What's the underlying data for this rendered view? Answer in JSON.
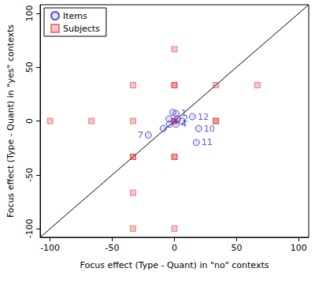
{
  "chart_data": {
    "type": "scatter",
    "x_label": "Focus effect (Type - Quant) in \"no\" contexts",
    "y_label": "Focus effect (Type - Quant) in \"yes\" contexts",
    "xlim": [
      -108,
      108
    ],
    "ylim": [
      -108,
      108
    ],
    "xticks": [
      -100,
      -50,
      0,
      50,
      100
    ],
    "yticks": [
      -100,
      -50,
      0,
      50,
      100
    ],
    "grid": false,
    "legend": "top-left",
    "series": [
      {
        "type": "line",
        "color": "#000000",
        "line_style": "solid",
        "x": [
          -108,
          108
        ],
        "values": [
          -108,
          108
        ]
      },
      {
        "name": "Subjects",
        "type": "scatter",
        "marker": "square",
        "color": "#e03030",
        "x": [
          0,
          -33.3,
          0,
          0,
          33.3,
          66.7,
          -100,
          -66.7,
          -33.3,
          0,
          0,
          33.3,
          33.3,
          -33.3,
          -33.3,
          0,
          0,
          -33.3,
          -33.3,
          0
        ],
        "values": [
          66.7,
          33.3,
          33.3,
          33.3,
          33.3,
          33.3,
          0,
          0,
          0,
          0,
          0,
          0,
          0,
          -33.3,
          -33.3,
          -33.3,
          -33.3,
          -66.7,
          -100,
          -100
        ]
      },
      {
        "name": "Items",
        "type": "scatter",
        "marker": "circle",
        "color": "#2b2bd0",
        "x": [
          1.3,
          2.5,
          -1.3,
          1.3,
          -4.4,
          -4,
          -21,
          -9,
          6,
          19.5,
          17.6,
          14.5
        ],
        "values": [
          7,
          2,
          8,
          -3,
          2,
          -3,
          -13,
          -7,
          0,
          -7,
          -20,
          4
        ],
        "labels": [
          "1",
          "2",
          null,
          "4",
          null,
          null,
          "7",
          null,
          null,
          "10",
          "11",
          "12"
        ]
      },
      {
        "type": "scatter",
        "marker": "x",
        "color": "#c020c0",
        "x": [
          0
        ],
        "values": [
          0
        ]
      }
    ]
  }
}
